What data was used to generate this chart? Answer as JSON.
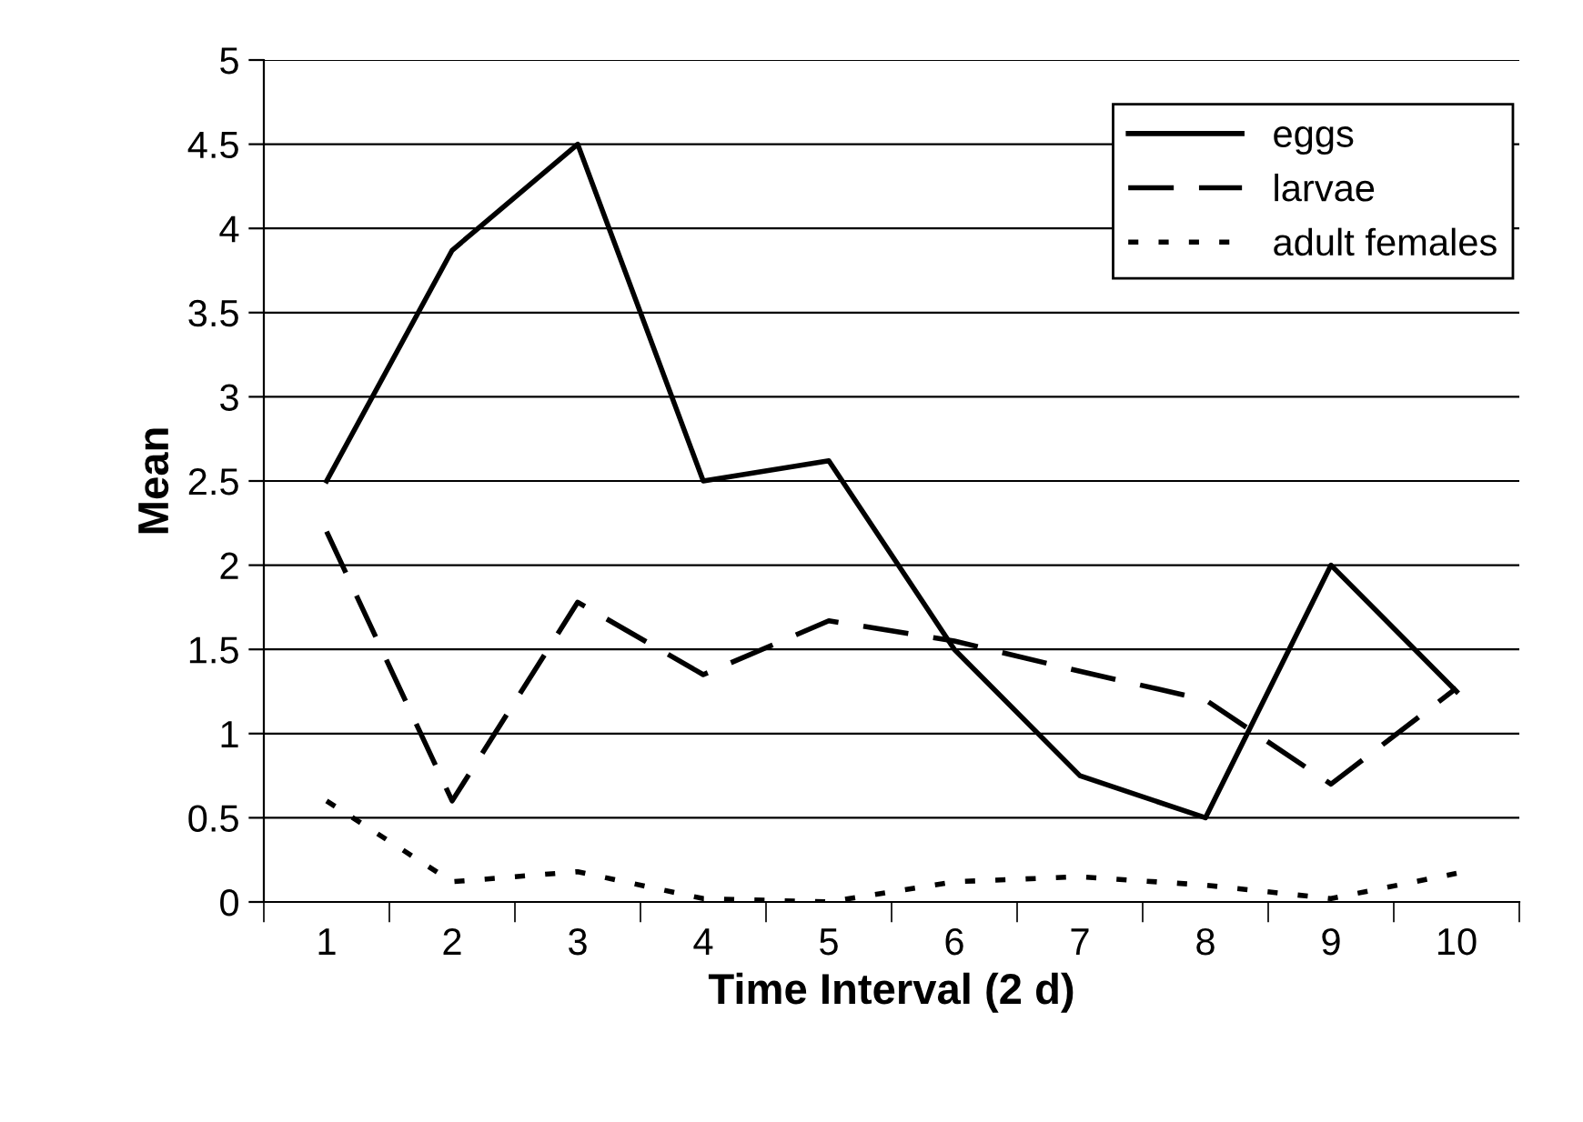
{
  "chart_data": {
    "type": "line",
    "xlabel": "Time Interval (2 d)",
    "ylabel": "Mean",
    "categories": [
      "1",
      "2",
      "3",
      "4",
      "5",
      "6",
      "7",
      "8",
      "9",
      "10"
    ],
    "series": [
      {
        "name": "eggs",
        "color": "#000000",
        "line_style": "solid",
        "values": [
          2.5,
          3.87,
          4.5,
          2.5,
          2.62,
          1.5,
          0.75,
          0.5,
          2.0,
          1.25
        ]
      },
      {
        "name": "larvae",
        "color": "#000000",
        "line_style": "dashed",
        "values": [
          2.2,
          0.6,
          1.78,
          1.35,
          1.67,
          1.55,
          1.37,
          1.2,
          0.7,
          1.27
        ]
      },
      {
        "name": "adult females",
        "color": "#000000",
        "line_style": "dotted",
        "values": [
          0.6,
          0.12,
          0.18,
          0.02,
          0.0,
          0.12,
          0.15,
          0.1,
          0.02,
          0.17
        ]
      }
    ],
    "ylim": [
      0,
      5
    ],
    "yticks": [
      0,
      0.5,
      1,
      1.5,
      2,
      2.5,
      3,
      3.5,
      4,
      4.5,
      5
    ],
    "grid": "y",
    "legend": "top right",
    "marker": "none"
  }
}
